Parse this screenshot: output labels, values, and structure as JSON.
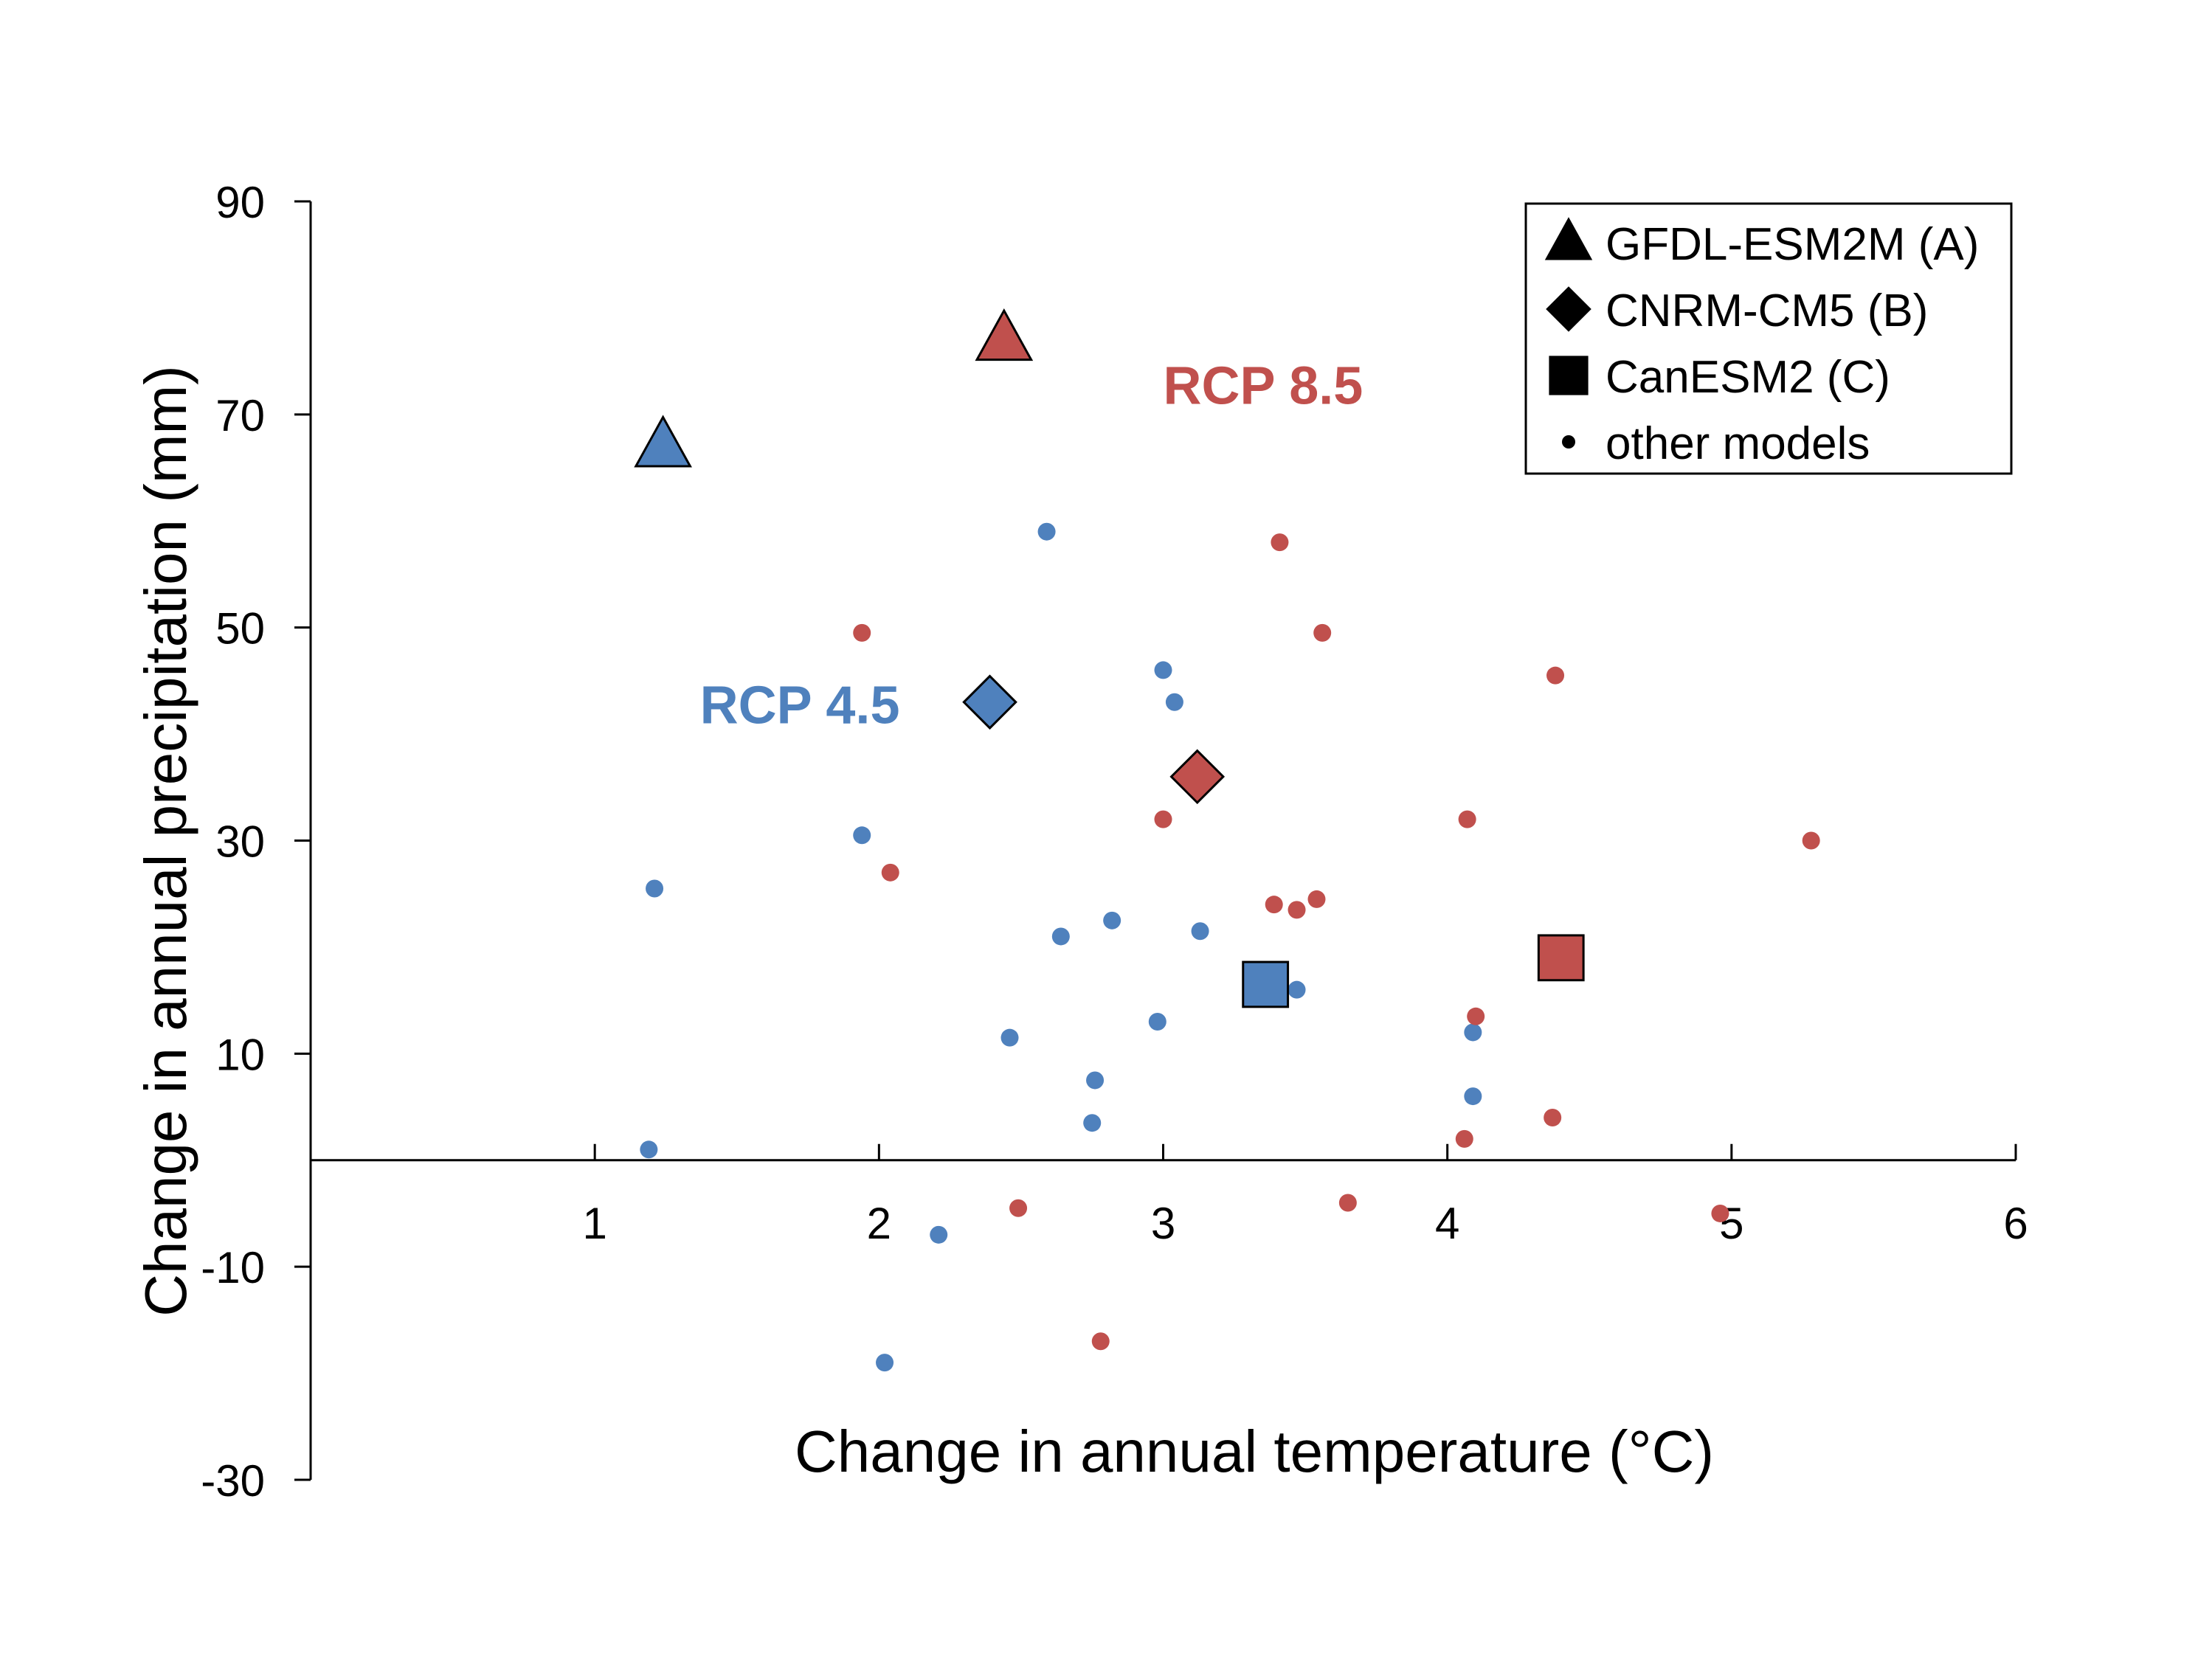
{
  "chart_data": {
    "type": "scatter",
    "xlabel": "Change in annual temperature (°C)",
    "ylabel": "Change in annual precipitation (mm)",
    "xlim": [
      0,
      6
    ],
    "ylim": [
      -30,
      90
    ],
    "x_ticks": [
      "1",
      "2",
      "3",
      "4",
      "5",
      "6"
    ],
    "y_ticks": [
      "90",
      "70",
      "50",
      "30",
      "10",
      "-10",
      "-30"
    ],
    "x_tick_values": [
      1,
      2,
      3,
      4,
      5,
      6
    ],
    "y_tick_values": [
      90,
      70,
      50,
      30,
      10,
      -10,
      -30
    ],
    "grid": false,
    "legend_position": "top-right",
    "legend": [
      {
        "marker": "triangle",
        "label": "GFDL-ESM2M (A)"
      },
      {
        "marker": "diamond",
        "label": "CNRM-CM5 (B)"
      },
      {
        "marker": "square",
        "label": "CanESM2 (C)"
      },
      {
        "marker": "circle",
        "label": "other models"
      }
    ],
    "annotations": [
      {
        "text": "RCP 8.5",
        "x": 3.0,
        "y": 71,
        "color": "#c0504d"
      },
      {
        "text": "RCP 4.5",
        "x": 1.37,
        "y": 41,
        "color": "#4f81bd"
      }
    ],
    "series": [
      {
        "name": "RCP 4.5",
        "color": "#4f81bd",
        "highlighted": [
          {
            "marker": "triangle",
            "x": 1.24,
            "y": 67
          },
          {
            "marker": "diamond",
            "x": 2.39,
            "y": 43
          },
          {
            "marker": "square",
            "x": 3.36,
            "y": 16.5
          }
        ],
        "points": [
          {
            "x": 2.59,
            "y": 59
          },
          {
            "x": 3.0,
            "y": 46
          },
          {
            "x": 3.04,
            "y": 43
          },
          {
            "x": 1.94,
            "y": 30.5
          },
          {
            "x": 1.21,
            "y": 25.5
          },
          {
            "x": 2.82,
            "y": 22.5
          },
          {
            "x": 2.64,
            "y": 21
          },
          {
            "x": 3.13,
            "y": 21.5
          },
          {
            "x": 3.47,
            "y": 16
          },
          {
            "x": 2.98,
            "y": 13
          },
          {
            "x": 2.46,
            "y": 11.5
          },
          {
            "x": 4.09,
            "y": 12
          },
          {
            "x": 2.76,
            "y": 7.5
          },
          {
            "x": 4.09,
            "y": 6
          },
          {
            "x": 2.75,
            "y": 3.5
          },
          {
            "x": 1.19,
            "y": 1
          },
          {
            "x": 2.21,
            "y": -7
          },
          {
            "x": 2.02,
            "y": -19
          }
        ]
      },
      {
        "name": "RCP 8.5",
        "color": "#c0504d",
        "highlighted": [
          {
            "marker": "triangle",
            "x": 2.44,
            "y": 77
          },
          {
            "marker": "diamond",
            "x": 3.12,
            "y": 36
          },
          {
            "marker": "square",
            "x": 4.4,
            "y": 19
          }
        ],
        "points": [
          {
            "x": 3.41,
            "y": 58
          },
          {
            "x": 1.94,
            "y": 49.5
          },
          {
            "x": 3.56,
            "y": 49.5
          },
          {
            "x": 4.38,
            "y": 45.5
          },
          {
            "x": 3.0,
            "y": 32
          },
          {
            "x": 4.07,
            "y": 32
          },
          {
            "x": 5.28,
            "y": 30
          },
          {
            "x": 2.04,
            "y": 27
          },
          {
            "x": 3.39,
            "y": 24
          },
          {
            "x": 3.47,
            "y": 23.5
          },
          {
            "x": 3.54,
            "y": 24.5
          },
          {
            "x": 4.1,
            "y": 13.5
          },
          {
            "x": 4.37,
            "y": 4
          },
          {
            "x": 4.06,
            "y": 2
          },
          {
            "x": 2.49,
            "y": -4.5
          },
          {
            "x": 3.65,
            "y": -4
          },
          {
            "x": 4.96,
            "y": -5
          },
          {
            "x": 2.78,
            "y": -17
          }
        ]
      }
    ]
  }
}
